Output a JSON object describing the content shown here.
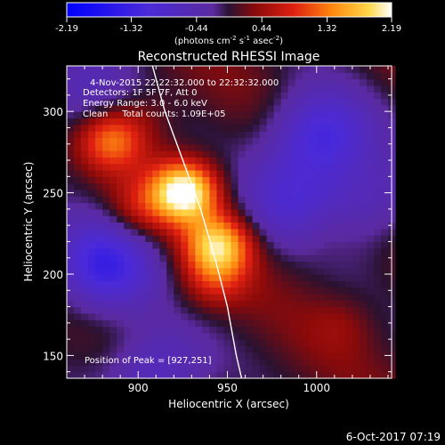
{
  "chart_data": {
    "type": "heatmap",
    "title": "Reconstructed RHESSI Image",
    "xlabel": "Heliocentric X (arcsec)",
    "ylabel": "Heliocentric Y (arcsec)",
    "xlim": [
      860,
      1042
    ],
    "ylim": [
      136,
      328
    ],
    "xticks": [
      900,
      950,
      1000
    ],
    "yticks": [
      150,
      200,
      250,
      300
    ],
    "xtick_labels": [
      "900",
      "950",
      "1000"
    ],
    "ytick_labels": [
      "150",
      "200",
      "250",
      "300"
    ],
    "colorbar": {
      "min": -2.19,
      "max": 2.19,
      "ticks": [
        -2.19,
        -1.32,
        -0.44,
        0.44,
        1.32,
        2.19
      ],
      "tick_labels": [
        "-2.19",
        "-1.32",
        "-0.44",
        "0.44",
        "1.32",
        "2.19"
      ],
      "unit_prefix": "(photons cm",
      "unit_exp1": "-2",
      "unit_mid": " s",
      "unit_exp2": "-1",
      "unit_mid2": " asec",
      "unit_exp3": "-2",
      "unit_suffix": ")"
    },
    "annotations": {
      "time_range": "4-Nov-2015 22:22:32.000 to 22:32:32.000",
      "detectors": "Detectors: 1F 5F 7F, Att 0",
      "energy": "Energy Range: 3.0 - 6.0 keV",
      "clean": "Clean     Total counts: 1.09E+05",
      "peak": "Position of Peak = [927,251]"
    },
    "sources": [
      {
        "x": 926,
        "y": 251,
        "peak": 2.19
      },
      {
        "x": 945,
        "y": 218,
        "peak": 1.65
      },
      {
        "x": 885,
        "y": 283,
        "peak": 1.15
      },
      {
        "x": 942,
        "y": 196,
        "peak": 0.6
      },
      {
        "x": 900,
        "y": 240,
        "peak": 0.55
      },
      {
        "x": 905,
        "y": 300,
        "peak": 0.25
      },
      {
        "x": 1005,
        "y": 225,
        "peak": 0.2
      },
      {
        "x": 1015,
        "y": 170,
        "peak": 0.25
      }
    ],
    "negatives": [
      {
        "x": 1002,
        "y": 285,
        "peak": -1.3
      },
      {
        "x": 880,
        "y": 205,
        "peak": -1.4
      },
      {
        "x": 910,
        "y": 140,
        "peak": -0.9
      },
      {
        "x": 985,
        "y": 245,
        "peak": -0.8
      },
      {
        "x": 868,
        "y": 310,
        "peak": -0.7
      },
      {
        "x": 1030,
        "y": 245,
        "peak": -0.7
      }
    ],
    "limb_line": [
      [
        908,
        328
      ],
      [
        915,
        300
      ],
      [
        925,
        270
      ],
      [
        935,
        240
      ],
      [
        943,
        210
      ],
      [
        950,
        180
      ],
      [
        955,
        150
      ],
      [
        958,
        136
      ]
    ]
  },
  "footer": {
    "date": "6-Oct-2017 07:19"
  }
}
